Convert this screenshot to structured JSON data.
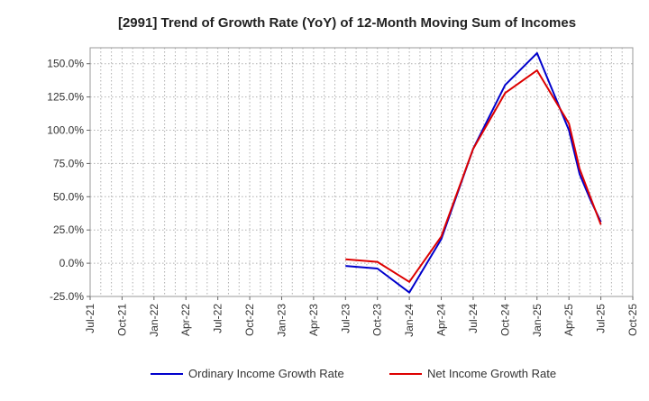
{
  "chart_data": {
    "type": "line",
    "title": "[2991]  Trend of Growth Rate (YoY) of 12-Month Moving Sum of Incomes",
    "xlabel": "",
    "ylabel": "",
    "x_ticks": [
      "Jul-21",
      "Oct-21",
      "Jan-22",
      "Apr-22",
      "Jul-22",
      "Oct-22",
      "Jan-23",
      "Apr-23",
      "Jul-23",
      "Oct-23",
      "Jan-24",
      "Apr-24",
      "Jul-24",
      "Oct-24",
      "Jan-25",
      "Apr-25",
      "Jul-25",
      "Oct-25"
    ],
    "y_ticks": [
      "-25.0%",
      "0.0%",
      "25.0%",
      "50.0%",
      "75.0%",
      "100.0%",
      "125.0%",
      "150.0%"
    ],
    "ylim": [
      -25,
      162
    ],
    "grid": true,
    "legend_position": "bottom",
    "series": [
      {
        "name": "Ordinary Income Growth Rate",
        "color": "#0000cc",
        "points": [
          [
            "Jul-23",
            -2
          ],
          [
            "Oct-23",
            -4
          ],
          [
            "Jan-24",
            -22
          ],
          [
            "Apr-24",
            18
          ],
          [
            "Jul-24",
            86
          ],
          [
            "Oct-24",
            134
          ],
          [
            "Jan-25",
            158
          ],
          [
            "Apr-25",
            100
          ],
          [
            "May-25",
            67
          ],
          [
            "Jun-25",
            48
          ],
          [
            "Jul-25",
            31
          ]
        ]
      },
      {
        "name": "Net Income Growth Rate",
        "color": "#dd0000",
        "points": [
          [
            "Jul-23",
            3
          ],
          [
            "Oct-23",
            1
          ],
          [
            "Jan-24",
            -14
          ],
          [
            "Apr-24",
            20
          ],
          [
            "Jul-24",
            86
          ],
          [
            "Oct-24",
            128
          ],
          [
            "Jan-25",
            145
          ],
          [
            "Apr-25",
            105
          ],
          [
            "May-25",
            71
          ],
          [
            "Jun-25",
            50
          ],
          [
            "Jul-25",
            29
          ]
        ]
      }
    ]
  }
}
